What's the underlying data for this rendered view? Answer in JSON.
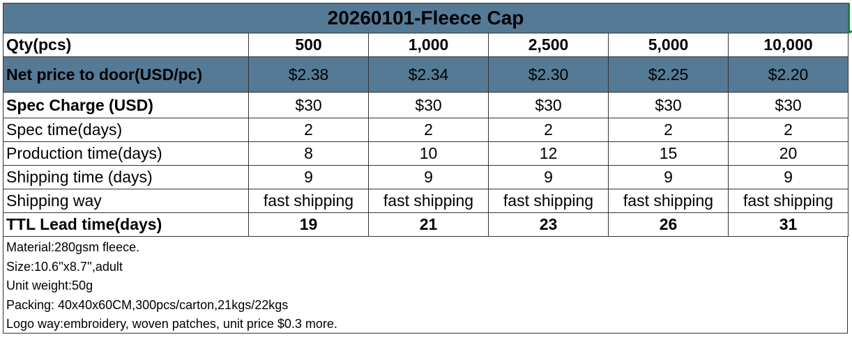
{
  "title": "20260101-Fleece Cap",
  "rows": {
    "qty": {
      "label": "Qty(pcs)",
      "values": [
        "500",
        "1,000",
        "2,500",
        "5,000",
        "10,000"
      ]
    },
    "net_price": {
      "label": "Net price to door(USD/pc)",
      "values": [
        "$2.38",
        "$2.34",
        "$2.30",
        "$2.25",
        "$2.20"
      ]
    },
    "spec_charge": {
      "label": "Spec Charge (USD)",
      "values": [
        "$30",
        "$30",
        "$30",
        "$30",
        "$30"
      ]
    },
    "spec_time": {
      "label": "Spec time(days)",
      "values": [
        "2",
        "2",
        "2",
        "2",
        "2"
      ]
    },
    "production_time": {
      "label": "Production time(days)",
      "values": [
        "8",
        "10",
        "12",
        "15",
        "20"
      ]
    },
    "shipping_time": {
      "label": "Shipping time (days)",
      "values": [
        "9",
        "9",
        "9",
        "9",
        "9"
      ]
    },
    "shipping_way": {
      "label": "Shipping way",
      "values": [
        "fast shipping",
        "fast shipping",
        "fast shipping",
        "fast shipping",
        "fast shipping"
      ]
    },
    "ttl_lead_time": {
      "label": "TTL Lead time(days)",
      "values": [
        "19",
        "21",
        "23",
        "26",
        "31"
      ]
    }
  },
  "notes": [
    "Material:280gsm fleece.",
    "Size:10.6''x8.7'',adult",
    "Unit weight:50g",
    "Packing: 40x40x60CM,300pcs/carton,21kgs/22kgs",
    "Logo way:embroidery, woven patches, unit price $0.3 more."
  ],
  "colors": {
    "header_fill": "#547a96",
    "selection": "#1e7b45"
  }
}
